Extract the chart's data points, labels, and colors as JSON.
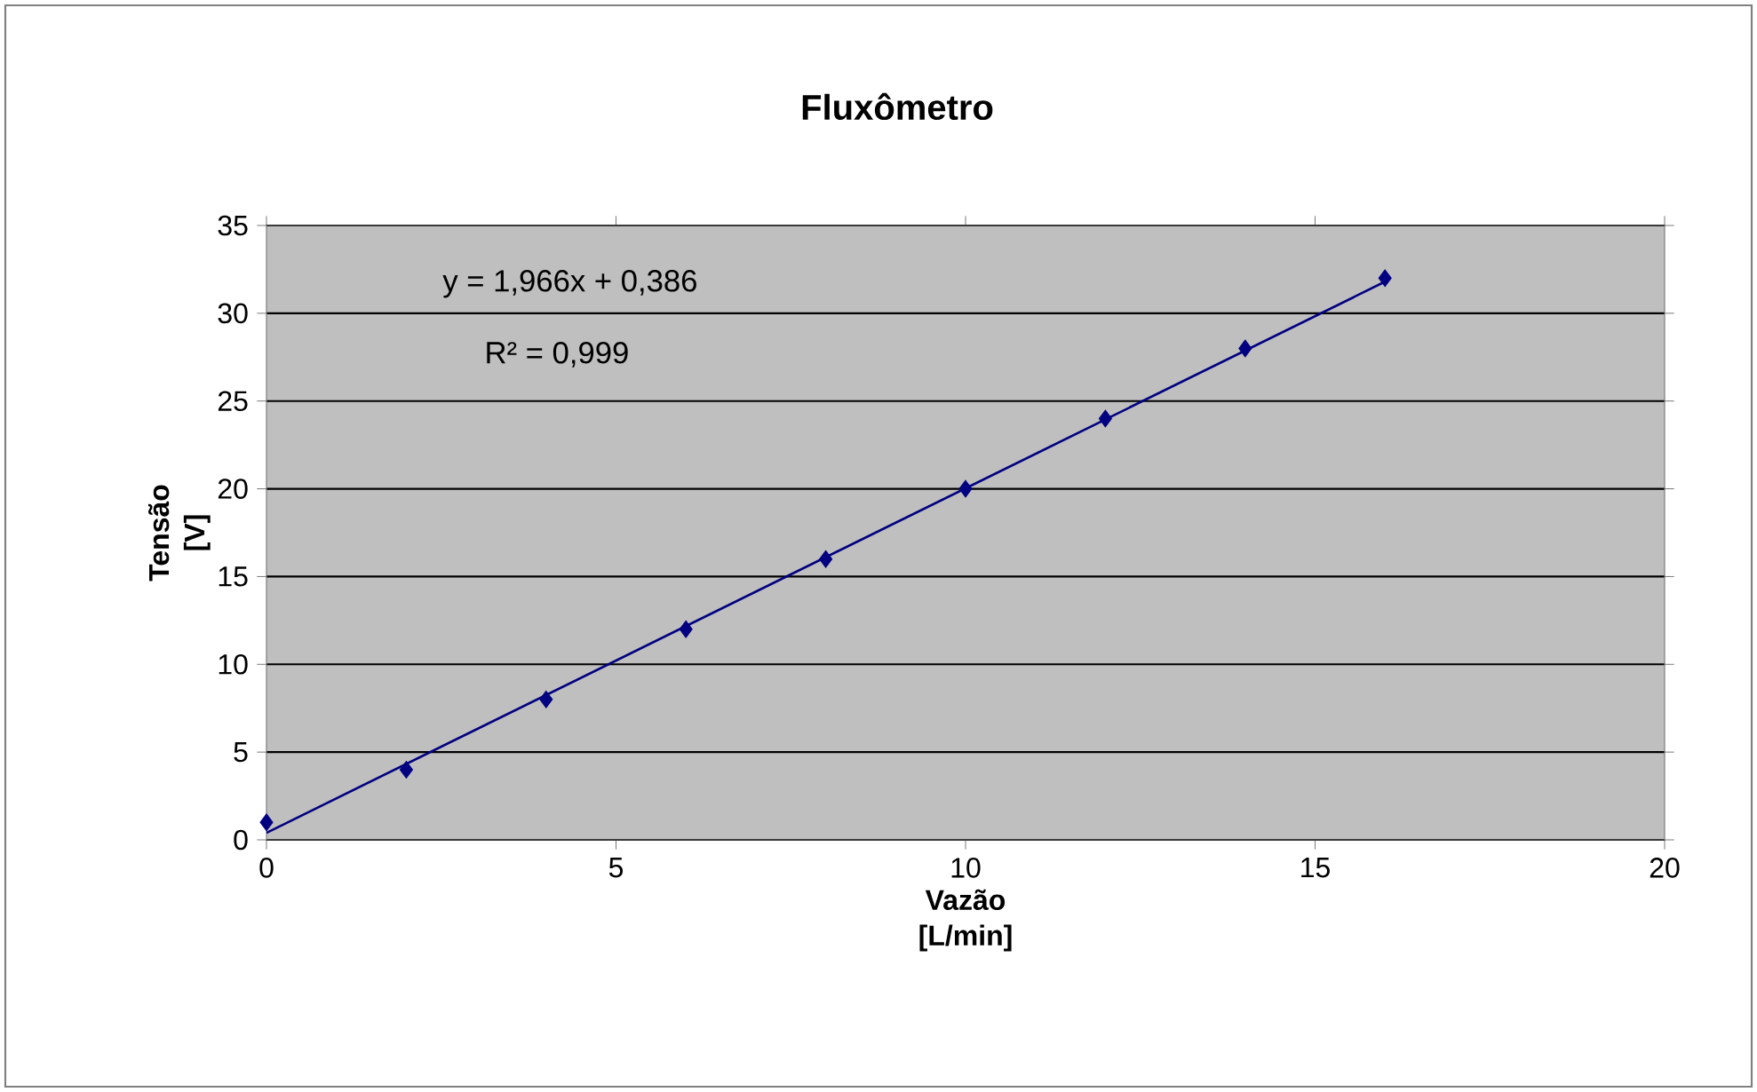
{
  "chart_data": {
    "type": "scatter",
    "title": "Fluxômetro",
    "xlabel": "Vazão [L/min]",
    "ylabel": "Tensão [V]",
    "series": [
      {
        "color": "#000080",
        "marker": "diamond",
        "x": [
          0,
          2,
          4,
          6,
          8,
          10,
          12,
          14,
          16
        ],
        "values": [
          1,
          4,
          8,
          12,
          16,
          20,
          24,
          28,
          32
        ]
      },
      {
        "type": "line",
        "color": "#000080",
        "marker": "none",
        "x": [
          0,
          16
        ],
        "values": [
          0.4,
          31.8
        ]
      }
    ],
    "annotations": [
      "y = 1,966x + 0,386",
      "R² = 0,999"
    ],
    "xlim": [
      0,
      20
    ],
    "ylim": [
      0,
      35
    ],
    "xticks": [
      0,
      5,
      10,
      15,
      20
    ],
    "yticks": [
      0,
      5,
      10,
      15,
      20,
      25,
      30,
      35
    ],
    "grid": "y"
  }
}
